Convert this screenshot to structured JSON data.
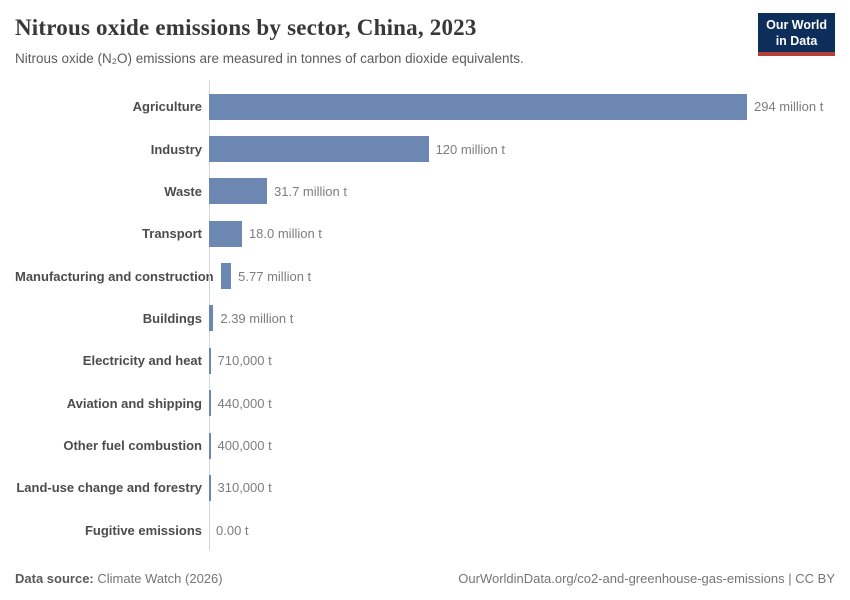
{
  "header": {
    "title": "Nitrous oxide emissions by sector, China, 2023",
    "subtitle": "Nitrous oxide (N₂O) emissions are measured in tonnes of carbon dioxide equivalents.",
    "logo": {
      "line1": "Our World",
      "line2": "in Data"
    }
  },
  "chart_data": {
    "type": "bar",
    "orientation": "horizontal",
    "title": "Nitrous oxide emissions by sector, China, 2023",
    "unit_note": "tonnes of carbon dioxide equivalents",
    "grid": false,
    "legend": "none",
    "xlim": [
      0,
      294000000
    ],
    "categories": [
      "Agriculture",
      "Industry",
      "Waste",
      "Transport",
      "Manufacturing and construction",
      "Buildings",
      "Electricity and heat",
      "Aviation and shipping",
      "Other fuel combustion",
      "Land-use change and forestry",
      "Fugitive emissions"
    ],
    "values_tonnes": [
      294000000,
      120000000,
      31700000,
      18000000,
      5770000,
      2390000,
      710000,
      440000,
      400000,
      310000,
      0
    ],
    "value_labels": [
      "294 million t",
      "120 million t",
      "31.7 million t",
      "18.0 million t",
      "5.77 million t",
      "2.39 million t",
      "710,000 t",
      "440,000 t",
      "400,000 t",
      "310,000 t",
      "0.00 t"
    ],
    "bar_color": "#6d87b3"
  },
  "footer": {
    "source_label": "Data source:",
    "source_value": " Climate Watch (2026)",
    "url": "OurWorldinData.org/co2-and-greenhouse-gas-emissions",
    "separator": " | ",
    "license": "CC BY"
  },
  "colors": {
    "bar": "#6d87b3",
    "logo_background": "#0d2e5b",
    "logo_underline": "#b5403a",
    "axis_line": "#d4d7dc"
  }
}
